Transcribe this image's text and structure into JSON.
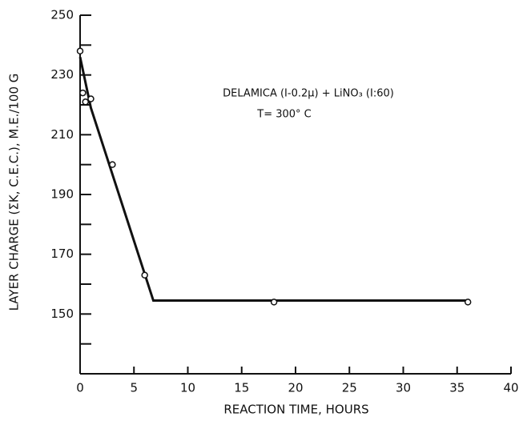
{
  "chart_data": {
    "type": "scatter",
    "x_label": "REACTION TIME, HOURS",
    "y_label": "LAYER  CHARGE (ΣK, C.E.C.), M.E./100 G",
    "annotations": [
      "DELAMICA  (I-0.2μ) + LiNO₃ (I:60)",
      "T= 300° C"
    ],
    "xlim": [
      0,
      40
    ],
    "xticks": [
      0,
      5,
      10,
      15,
      20,
      25,
      30,
      35,
      40
    ],
    "ylim": [
      130,
      250
    ],
    "yticks": [
      150,
      170,
      190,
      210,
      230,
      250
    ],
    "yminorticks": [
      140,
      160,
      180,
      200,
      220,
      240
    ],
    "color": "#111111",
    "points": {
      "x": [
        0,
        0.25,
        0.5,
        1,
        3,
        6,
        18,
        36
      ],
      "y": [
        238,
        224,
        221,
        222,
        200,
        163,
        154,
        154
      ]
    },
    "fit_line": {
      "x": [
        0,
        1,
        6.8,
        36
      ],
      "y": [
        236,
        219,
        154.5,
        154.5
      ]
    }
  }
}
